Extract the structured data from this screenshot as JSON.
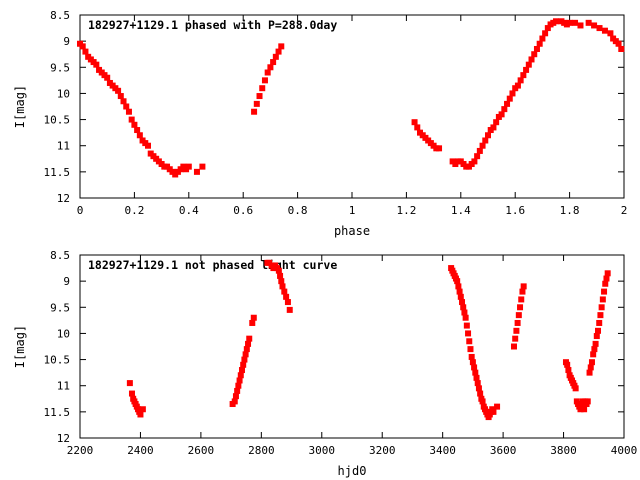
{
  "chart_data": [
    {
      "type": "scatter",
      "title": "182927+1129.1 phased with P=288.0day",
      "xlabel": "phase",
      "ylabel": "I[mag]",
      "xlim": [
        0,
        2
      ],
      "ylim": [
        8.5,
        12
      ],
      "y_inverted": true,
      "x_ticks": [
        "0",
        "0.2",
        "0.4",
        "0.6",
        "0.8",
        "1",
        "1.2",
        "1.4",
        "1.6",
        "1.8",
        "2"
      ],
      "y_ticks": [
        "8.5",
        "9",
        "9.5",
        "10",
        "10.5",
        "11",
        "11.5",
        "12"
      ],
      "marker_color": "#ff0000",
      "series": [
        {
          "x": [
            0.0,
            0.01,
            0.02,
            0.03,
            0.04,
            0.05,
            0.06,
            0.07,
            0.08,
            0.09,
            0.1,
            0.11,
            0.12,
            0.13,
            0.14,
            0.15,
            0.16,
            0.17,
            0.18,
            0.19,
            0.2,
            0.21,
            0.22,
            0.23,
            0.24,
            0.25,
            0.26,
            0.27,
            0.28,
            0.29,
            0.3,
            0.31,
            0.32,
            0.33,
            0.34,
            0.35,
            0.36,
            0.37,
            0.38,
            0.39,
            0.4,
            0.43,
            0.45,
            0.64,
            0.65,
            0.66,
            0.67,
            0.68,
            0.69,
            0.7,
            0.71,
            0.72,
            0.73,
            0.74,
            1.23,
            1.24,
            1.25,
            1.26,
            1.27,
            1.28,
            1.29,
            1.3,
            1.31,
            1.32,
            1.37,
            1.38,
            1.39,
            1.4,
            1.41,
            1.42,
            1.43,
            1.44,
            1.45,
            1.46,
            1.47,
            1.48,
            1.49,
            1.5,
            1.51,
            1.52,
            1.53,
            1.54,
            1.55,
            1.56,
            1.57,
            1.58,
            1.59,
            1.6,
            1.61,
            1.62,
            1.63,
            1.64,
            1.65,
            1.66,
            1.67,
            1.68,
            1.69,
            1.7,
            1.71,
            1.72,
            1.73,
            1.74,
            1.75,
            1.77,
            1.78,
            1.79,
            1.8,
            1.82,
            1.84,
            1.87,
            1.89,
            1.91,
            1.93,
            1.95,
            1.96,
            1.97,
            1.98,
            1.99
          ],
          "y": [
            9.05,
            9.1,
            9.2,
            9.3,
            9.35,
            9.4,
            9.45,
            9.55,
            9.6,
            9.65,
            9.7,
            9.8,
            9.85,
            9.9,
            9.95,
            10.05,
            10.15,
            10.25,
            10.35,
            10.5,
            10.6,
            10.7,
            10.8,
            10.9,
            10.95,
            11.0,
            11.15,
            11.2,
            11.25,
            11.3,
            11.35,
            11.4,
            11.4,
            11.45,
            11.5,
            11.55,
            11.5,
            11.45,
            11.4,
            11.45,
            11.4,
            11.5,
            11.4,
            10.35,
            10.2,
            10.05,
            9.9,
            9.75,
            9.6,
            9.5,
            9.4,
            9.3,
            9.2,
            9.1,
            10.55,
            10.65,
            10.75,
            10.8,
            10.85,
            10.9,
            10.95,
            11.0,
            11.05,
            11.05,
            11.3,
            11.35,
            11.3,
            11.3,
            11.35,
            11.4,
            11.4,
            11.35,
            11.3,
            11.2,
            11.1,
            11.0,
            10.9,
            10.8,
            10.7,
            10.65,
            10.55,
            10.45,
            10.4,
            10.3,
            10.2,
            10.1,
            10.0,
            9.9,
            9.85,
            9.75,
            9.65,
            9.55,
            9.45,
            9.35,
            9.25,
            9.15,
            9.05,
            8.95,
            8.85,
            8.75,
            8.68,
            8.65,
            8.62,
            8.62,
            8.65,
            8.68,
            8.65,
            8.65,
            8.7,
            8.65,
            8.7,
            8.75,
            8.8,
            8.85,
            8.95,
            9.0,
            9.05,
            9.15
          ]
        }
      ]
    },
    {
      "type": "scatter",
      "title": "182927+1129.1 not phased light curve",
      "xlabel": "hjd0",
      "ylabel": "I[mag]",
      "xlim": [
        2200,
        4000
      ],
      "ylim": [
        8.5,
        12
      ],
      "y_inverted": true,
      "x_ticks": [
        "2200",
        "2400",
        "2600",
        "2800",
        "3000",
        "3200",
        "3400",
        "3600",
        "3800",
        "4000"
      ],
      "y_ticks": [
        "8.5",
        "9",
        "9.5",
        "10",
        "10.5",
        "11",
        "11.5",
        "12"
      ],
      "marker_color": "#ff0000",
      "series": [
        {
          "x": [
            2365,
            2372,
            2376,
            2380,
            2384,
            2388,
            2392,
            2396,
            2400,
            2408,
            2705,
            2712,
            2716,
            2720,
            2724,
            2728,
            2732,
            2736,
            2740,
            2744,
            2748,
            2752,
            2756,
            2760,
            2770,
            2775,
            2820,
            2826,
            2834,
            2840,
            2846,
            2852,
            2858,
            2862,
            2866,
            2870,
            2876,
            2882,
            2888,
            2894,
            3428,
            3432,
            3436,
            3440,
            3444,
            3448,
            3452,
            3456,
            3460,
            3464,
            3468,
            3472,
            3476,
            3480,
            3484,
            3488,
            3492,
            3496,
            3500,
            3504,
            3508,
            3512,
            3516,
            3520,
            3524,
            3528,
            3532,
            3536,
            3540,
            3544,
            3548,
            3552,
            3556,
            3560,
            3564,
            3568,
            3580,
            3636,
            3640,
            3644,
            3648,
            3652,
            3656,
            3660,
            3664,
            3668,
            3808,
            3812,
            3816,
            3820,
            3824,
            3828,
            3832,
            3836,
            3840,
            3844,
            3848,
            3852,
            3856,
            3860,
            3864,
            3868,
            3872,
            3876,
            3880,
            3886,
            3890,
            3894,
            3898,
            3902,
            3906,
            3910,
            3914,
            3918,
            3922,
            3926,
            3930,
            3934,
            3938,
            3942,
            3946
          ],
          "y": [
            10.95,
            11.15,
            11.25,
            11.3,
            11.35,
            11.4,
            11.45,
            11.5,
            11.55,
            11.45,
            11.35,
            11.3,
            11.2,
            11.1,
            11.0,
            10.9,
            10.8,
            10.7,
            10.6,
            10.5,
            10.4,
            10.3,
            10.2,
            10.1,
            9.8,
            9.7,
            8.65,
            8.65,
            8.7,
            8.75,
            8.7,
            8.75,
            8.8,
            8.9,
            9.0,
            9.1,
            9.2,
            9.3,
            9.4,
            9.55,
            8.75,
            8.8,
            8.85,
            8.9,
            8.95,
            9.0,
            9.1,
            9.2,
            9.3,
            9.4,
            9.5,
            9.6,
            9.7,
            9.85,
            10.0,
            10.15,
            10.3,
            10.45,
            10.55,
            10.65,
            10.75,
            10.85,
            10.95,
            11.05,
            11.15,
            11.25,
            11.3,
            11.4,
            11.45,
            11.5,
            11.55,
            11.6,
            11.55,
            11.5,
            11.45,
            11.5,
            11.4,
            10.25,
            10.1,
            9.95,
            9.8,
            9.65,
            9.5,
            9.35,
            9.2,
            9.1,
            10.55,
            10.6,
            10.7,
            10.8,
            10.85,
            10.9,
            10.95,
            11.0,
            11.05,
            11.3,
            11.35,
            11.4,
            11.45,
            11.35,
            11.3,
            11.45,
            11.3,
            11.35,
            11.3,
            10.75,
            10.65,
            10.55,
            10.4,
            10.3,
            10.2,
            10.05,
            9.95,
            9.8,
            9.65,
            9.5,
            9.35,
            9.2,
            9.05,
            8.95,
            8.85
          ]
        }
      ]
    }
  ]
}
